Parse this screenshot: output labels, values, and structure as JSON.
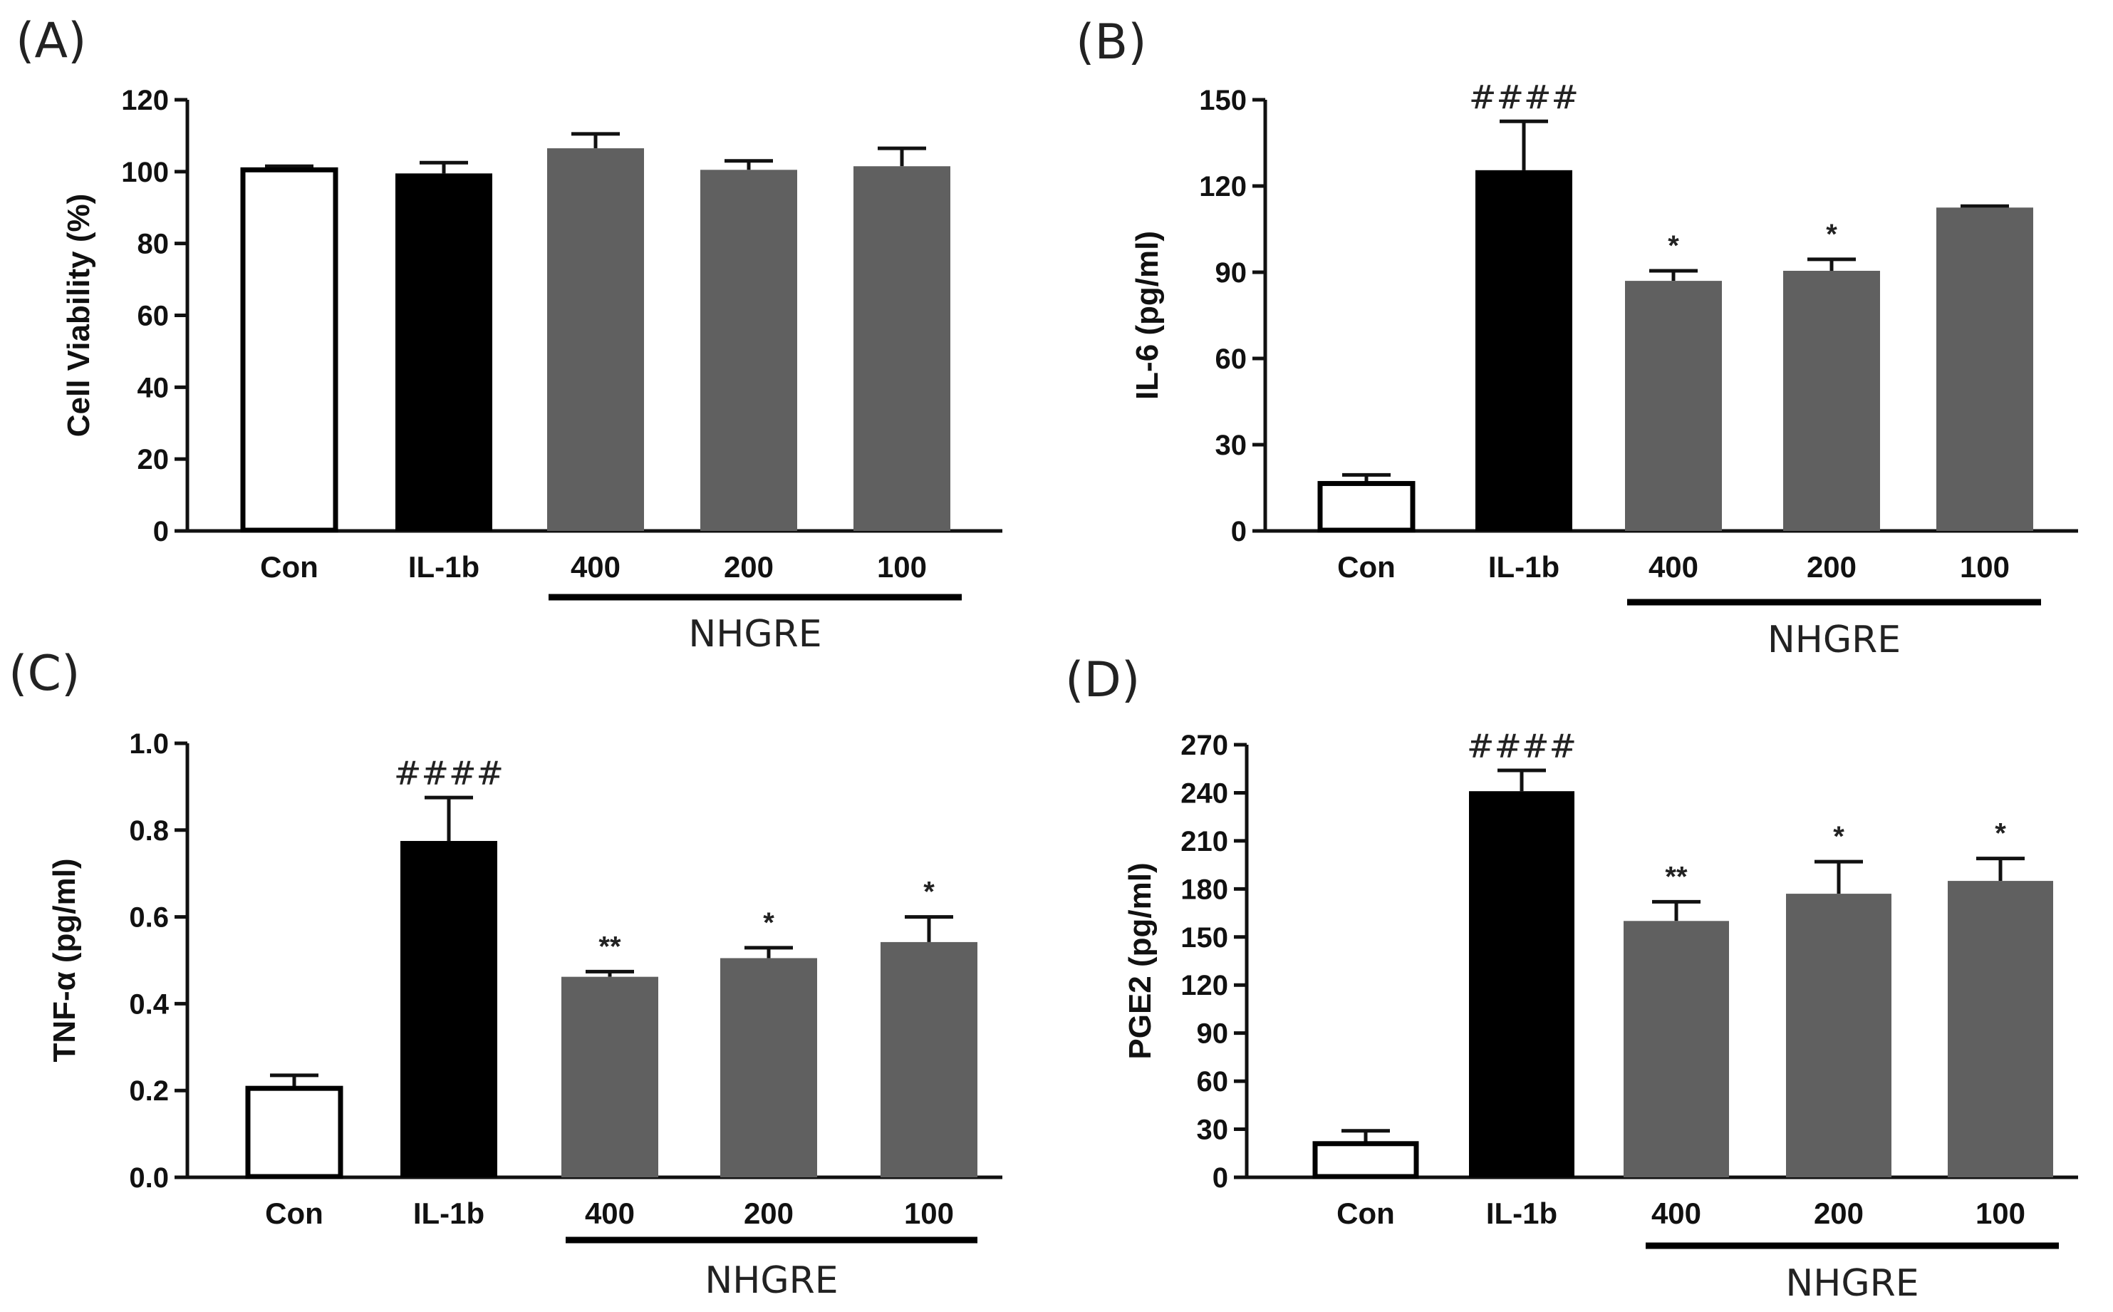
{
  "colors": {
    "con": "#ffffff",
    "il1b": "#000000",
    "nhgre": "#606060",
    "axis": "#111111"
  },
  "chart_data": [
    {
      "panel": "(A)",
      "type": "bar",
      "ylabel": "Cell Viability (%)",
      "ylim": [
        0,
        120
      ],
      "yticks": [
        "0",
        "20",
        "40",
        "60",
        "80",
        "100",
        "120"
      ],
      "categories": [
        "Con",
        "IL-1b",
        "400",
        "200",
        "100"
      ],
      "values": [
        100.5,
        99.5,
        106.5,
        100.5,
        101.5
      ],
      "errors": [
        1.0,
        3.0,
        4.0,
        2.5,
        5.0
      ],
      "annotations": [
        "",
        "",
        "",
        "",
        ""
      ],
      "group_label": "NHGRE"
    },
    {
      "panel": "(B)",
      "type": "bar",
      "ylabel": "IL-6 (pg/ml)",
      "ylim": [
        0,
        150
      ],
      "yticks": [
        "0",
        "30",
        "60",
        "90",
        "120",
        "150"
      ],
      "categories": [
        "Con",
        "IL-1b",
        "400",
        "200",
        "100"
      ],
      "values": [
        16.5,
        125.5,
        87,
        90.5,
        112.5
      ],
      "errors": [
        3.0,
        17.0,
        3.5,
        4.0,
        0.5
      ],
      "annotations": [
        "",
        "####",
        "*",
        "*",
        ""
      ],
      "group_label": "NHGRE"
    },
    {
      "panel": "(C)",
      "type": "bar",
      "ylabel": "TNF-α (pg/ml)",
      "ylim": [
        0,
        1.0
      ],
      "yticks": [
        "0.0",
        "0.2",
        "0.4",
        "0.6",
        "0.8",
        "1.0"
      ],
      "categories": [
        "Con",
        "IL-1b",
        "400",
        "200",
        "100"
      ],
      "values": [
        0.205,
        0.775,
        0.462,
        0.505,
        0.542
      ],
      "errors": [
        0.03,
        0.1,
        0.012,
        0.024,
        0.058
      ],
      "annotations": [
        "",
        "####",
        "**",
        "*",
        "*"
      ],
      "group_label": "NHGRE"
    },
    {
      "panel": "(D)",
      "type": "bar",
      "ylabel": "PGE2 (pg/ml)",
      "ylim": [
        0,
        270
      ],
      "yticks": [
        "0",
        "30",
        "60",
        "90",
        "120",
        "150",
        "180",
        "210",
        "240",
        "270"
      ],
      "categories": [
        "Con",
        "IL-1b",
        "400",
        "200",
        "100"
      ],
      "values": [
        21,
        241,
        160,
        177,
        185
      ],
      "errors": [
        8,
        13,
        12,
        20,
        14
      ],
      "annotations": [
        "",
        "####",
        "**",
        "*",
        "*"
      ],
      "group_label": "NHGRE"
    }
  ]
}
